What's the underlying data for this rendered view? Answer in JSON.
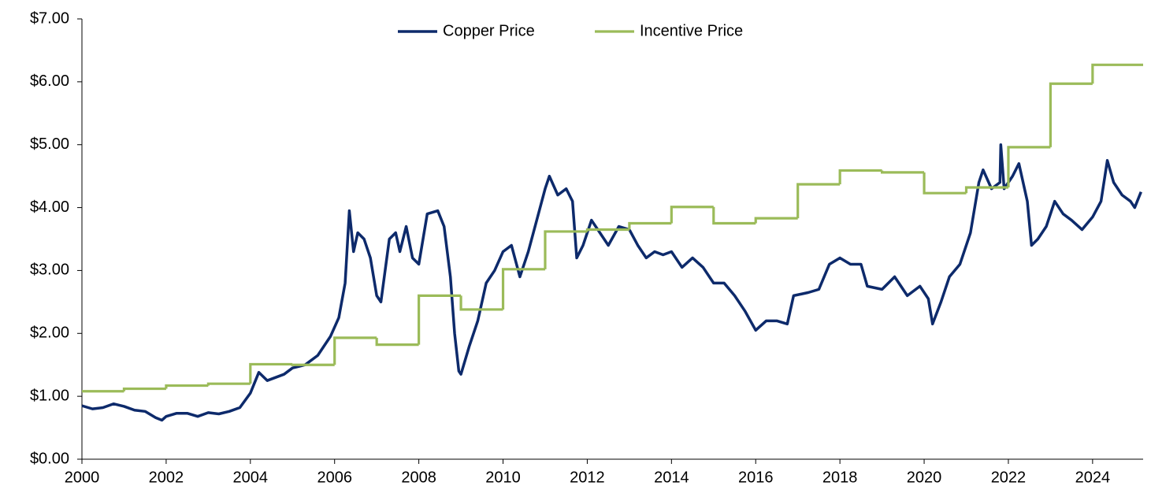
{
  "chart_data": {
    "type": "line",
    "xlim": [
      2000,
      2025.2
    ],
    "xticks": [
      2000,
      2002,
      2004,
      2006,
      2008,
      2010,
      2012,
      2014,
      2016,
      2018,
      2020,
      2022,
      2024
    ],
    "ylim": [
      0,
      7
    ],
    "yticks": [
      {
        "value": 0,
        "label": "$0.00"
      },
      {
        "value": 1,
        "label": "$1.00"
      },
      {
        "value": 2,
        "label": "$2.00"
      },
      {
        "value": 3,
        "label": "$3.00"
      },
      {
        "value": 4,
        "label": "$4.00"
      },
      {
        "value": 5,
        "label": "$5.00"
      },
      {
        "value": 6,
        "label": "$6.00"
      },
      {
        "value": 7,
        "label": "$7.00"
      }
    ],
    "grid": false,
    "legend": "top",
    "series": [
      {
        "name": "Copper Price",
        "color": "#0d2a6b",
        "step": false,
        "x": [
          2000.0,
          2000.25,
          2000.5,
          2000.75,
          2001.0,
          2001.25,
          2001.5,
          2001.75,
          2001.9,
          2002.0,
          2002.25,
          2002.5,
          2002.75,
          2003.0,
          2003.25,
          2003.5,
          2003.75,
          2004.0,
          2004.2,
          2004.4,
          2004.6,
          2004.8,
          2005.0,
          2005.3,
          2005.6,
          2005.9,
          2006.1,
          2006.25,
          2006.35,
          2006.45,
          2006.55,
          2006.7,
          2006.85,
          2007.0,
          2007.1,
          2007.3,
          2007.45,
          2007.55,
          2007.7,
          2007.85,
          2008.0,
          2008.2,
          2008.45,
          2008.6,
          2008.75,
          2008.85,
          2008.95,
          2009.0,
          2009.2,
          2009.4,
          2009.6,
          2009.8,
          2010.0,
          2010.2,
          2010.4,
          2010.6,
          2010.8,
          2011.0,
          2011.1,
          2011.3,
          2011.5,
          2011.65,
          2011.75,
          2011.9,
          2012.1,
          2012.3,
          2012.5,
          2012.75,
          2013.0,
          2013.2,
          2013.4,
          2013.6,
          2013.8,
          2014.0,
          2014.25,
          2014.5,
          2014.75,
          2015.0,
          2015.25,
          2015.5,
          2015.75,
          2016.0,
          2016.25,
          2016.5,
          2016.75,
          2016.9,
          2017.25,
          2017.5,
          2017.75,
          2018.0,
          2018.25,
          2018.5,
          2018.65,
          2019.0,
          2019.3,
          2019.6,
          2019.9,
          2020.1,
          2020.2,
          2020.4,
          2020.6,
          2020.85,
          2021.1,
          2021.3,
          2021.4,
          2021.6,
          2021.8,
          2021.82,
          2021.9,
          2022.1,
          2022.25,
          2022.45,
          2022.55,
          2022.7,
          2022.9,
          2023.1,
          2023.3,
          2023.5,
          2023.75,
          2024.0,
          2024.2,
          2024.35,
          2024.5,
          2024.7,
          2024.9,
          2025.0,
          2025.15
        ],
        "values": [
          0.85,
          0.8,
          0.82,
          0.88,
          0.84,
          0.78,
          0.76,
          0.66,
          0.62,
          0.68,
          0.73,
          0.73,
          0.68,
          0.74,
          0.72,
          0.76,
          0.82,
          1.05,
          1.38,
          1.25,
          1.3,
          1.35,
          1.45,
          1.5,
          1.65,
          1.95,
          2.25,
          2.8,
          3.95,
          3.3,
          3.6,
          3.5,
          3.2,
          2.6,
          2.5,
          3.5,
          3.6,
          3.3,
          3.7,
          3.2,
          3.1,
          3.9,
          3.95,
          3.7,
          2.9,
          2.0,
          1.4,
          1.35,
          1.8,
          2.2,
          2.8,
          3.0,
          3.3,
          3.4,
          2.9,
          3.3,
          3.8,
          4.3,
          4.5,
          4.2,
          4.3,
          4.1,
          3.2,
          3.4,
          3.8,
          3.6,
          3.4,
          3.7,
          3.65,
          3.4,
          3.2,
          3.3,
          3.25,
          3.3,
          3.05,
          3.2,
          3.05,
          2.8,
          2.8,
          2.6,
          2.35,
          2.05,
          2.2,
          2.2,
          2.15,
          2.6,
          2.65,
          2.7,
          3.1,
          3.2,
          3.1,
          3.1,
          2.75,
          2.7,
          2.9,
          2.6,
          2.75,
          2.55,
          2.15,
          2.5,
          2.9,
          3.1,
          3.6,
          4.4,
          4.6,
          4.3,
          4.4,
          5.0,
          4.3,
          4.5,
          4.7,
          4.1,
          3.4,
          3.5,
          3.7,
          4.1,
          3.9,
          3.8,
          3.65,
          3.85,
          4.1,
          4.75,
          4.4,
          4.2,
          4.1,
          4.0,
          4.25
        ]
      },
      {
        "name": "Incentive Price",
        "color": "#9bbb59",
        "step": true,
        "x": [
          2000,
          2001,
          2002,
          2003,
          2004,
          2005,
          2006,
          2007,
          2008,
          2009,
          2010,
          2011,
          2012,
          2013,
          2014,
          2015,
          2016,
          2017,
          2018,
          2019,
          2020,
          2021,
          2022,
          2023,
          2024
        ],
        "values": [
          1.08,
          1.12,
          1.17,
          1.2,
          1.51,
          1.5,
          1.93,
          1.82,
          2.6,
          2.38,
          3.02,
          3.62,
          3.65,
          3.75,
          4.01,
          3.75,
          3.83,
          4.37,
          4.59,
          4.56,
          4.23,
          4.32,
          4.96,
          5.97,
          6.27
        ]
      }
    ]
  }
}
